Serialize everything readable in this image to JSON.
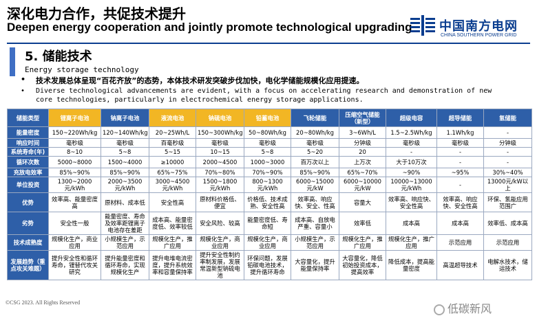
{
  "header": {
    "title_cn": "深化电力合作，共促技术提升",
    "title_en": "Deepen energy cooperation and jointly promote technological upgrading",
    "logo_cn": "中国南方电网",
    "logo_en": "CHINA SOUTHERN POWER GRID"
  },
  "section": {
    "title": "5. 储能技术",
    "subtitle": "Energy storage technology"
  },
  "bullets": [
    "技术发展总体呈现“百花齐放”的态势，本体技术研发突破步伐加快，电化学储能规模化应用提速。",
    "Diverse technological advancements are evident, with a focus on accelerating research and demonstration of new",
    "core technologies, particularly in electrochemical energy storage applications."
  ],
  "bullet_mark": "•",
  "table": {
    "header": [
      "储能类型",
      "锂离子电池",
      "钠离子电池",
      "液流电池",
      "钠硫电池",
      "铅蓄电池",
      "飞轮储能",
      "压缩空气储能（新型）",
      "超级电容",
      "超导储能",
      "氢储能"
    ],
    "rows": [
      [
        "能量密度",
        "150~220Wh/kg",
        "120~140Wh/kg",
        "20~25Wh/L",
        "150~300Wh/kg",
        "50~80Wh/kg",
        "20~80Wh/kg",
        "3~6Wh/L",
        "1.5~2.5Wh/kg",
        "1.1Wh/kg",
        "-"
      ],
      [
        "响应时间",
        "毫秒级",
        "毫秒级",
        "百毫秒级",
        "毫秒级",
        "毫秒级",
        "毫秒级",
        "分钟级",
        "毫秒级",
        "毫秒级",
        "分钟级"
      ],
      [
        "系统寿命(年)",
        "8~10",
        "5~8",
        "5~15",
        "10~15",
        "5~8",
        "5~20",
        "20",
        "-",
        "-",
        "-"
      ],
      [
        "循环次数",
        "5000~8000",
        "1500~4000",
        "≥10000",
        "2000~4500",
        "1000~3000",
        "百万次以上",
        "上万次",
        "大于10万次",
        "-",
        "-"
      ],
      [
        "充放电效率",
        "85%~90%",
        "85%~90%",
        "65%~75%",
        "70%~80%",
        "70%~90%",
        "85%~90%",
        "65%~70%",
        "~90%",
        "~95%",
        "30%~40%"
      ],
      [
        "单位投资",
        "1300~2000元/kWh",
        "2000~3500元/kWh",
        "3000~4500元/kWh",
        "1500~1800元/kWh",
        "800~1300元/kWh",
        "6000~15000元/kW",
        "6000~10000元/kW",
        "10000~13000元/kWh",
        "-",
        "13000元/kW以上"
      ],
      [
        "优势",
        "效率高、能量密度高",
        "原材料、成本低",
        "安全性高",
        "原材料价格低、便宜",
        "价格低、技术成熟、安全性高",
        "效率高、响应快、安全、性高",
        "容量大",
        "效率高、响应快、安全性高",
        "效率高、响应快、安全性高",
        "环保、氢能应用范围广"
      ],
      [
        "劣势",
        "安全性一般",
        "能量密度、寿命及效率距锂离子电池存在差距",
        "成本高、能量密度低、效率较低",
        "安全风险、较高",
        "能量密度低、寿命短",
        "成本高、自放电严重、容量小",
        "效率低",
        "成本高",
        "成本高",
        "效率低、成本高"
      ],
      [
        "技术成熟度",
        "规模化生产，商业应用",
        "小规模生产，示范应用",
        "规模化生产，推广应用",
        "规模化生产，商业应用",
        "规模化生产，商业应用",
        "小规模生产，示范应用",
        "规模化生产，推广应用",
        "规模化生产，推广应用",
        "示范应用",
        "示范应用"
      ],
      [
        "发展趋势（重点攻关难题）",
        "提升安全性和循环寿命，锂替代攻关研究",
        "提升能量密度和循环寿命，实现规模化生产",
        "提升电堆电流密度，提升系统效率和容量保持率",
        "提升安全性制约率制发展，发展常温新型钠硫电池",
        "环保问题，发展铅碳电池技术，提升循环寿命",
        "大容量化，提升能量保持率",
        "大容量化，降低初始投资成本，提高效率",
        "降低成本，提高能量密度",
        "高温超导技术",
        "电解水技术，储运技术"
      ]
    ]
  },
  "footer": "©CSG 2023. All Rights Reserved",
  "watermark": "低碳新风",
  "colors": {
    "brand_blue": "#0a3d8f",
    "table_header": "#2e5fa8",
    "highlight": "#f2b624"
  }
}
